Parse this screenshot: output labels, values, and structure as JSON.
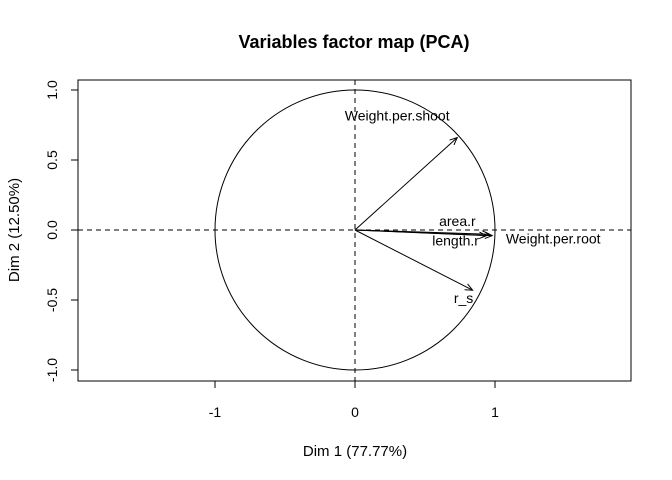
{
  "chart_data": {
    "type": "scatter",
    "subtype": "pca-variables-factor-map",
    "title": "Variables factor map (PCA)",
    "xlabel": "Dim 1 (77.77%)",
    "ylabel": "Dim 2 (12.50%)",
    "xlim": [
      -1.95,
      1.95
    ],
    "ylim": [
      -1.08,
      1.08
    ],
    "xticks": [
      -1,
      0,
      1
    ],
    "yticks": [
      -1.0,
      -0.5,
      0.0,
      0.5,
      1.0
    ],
    "xtick_labels": [
      "-1",
      "0",
      "1"
    ],
    "ytick_labels": [
      "-1.0",
      "-0.5",
      "0.0",
      "0.5",
      "1.0"
    ],
    "grid": false,
    "unit_circle": true,
    "reference_lines": "dashed at x=0 and y=0",
    "variables": [
      {
        "label": "Weight.per.shoot",
        "x": 0.73,
        "y": 0.66
      },
      {
        "label": "area.r",
        "x": 0.96,
        "y": -0.03
      },
      {
        "label": "length.r",
        "x": 0.94,
        "y": -0.04
      },
      {
        "label": "Weight.per.root",
        "x": 0.98,
        "y": -0.04
      },
      {
        "label": "r_s",
        "x": 0.84,
        "y": -0.43
      }
    ]
  }
}
